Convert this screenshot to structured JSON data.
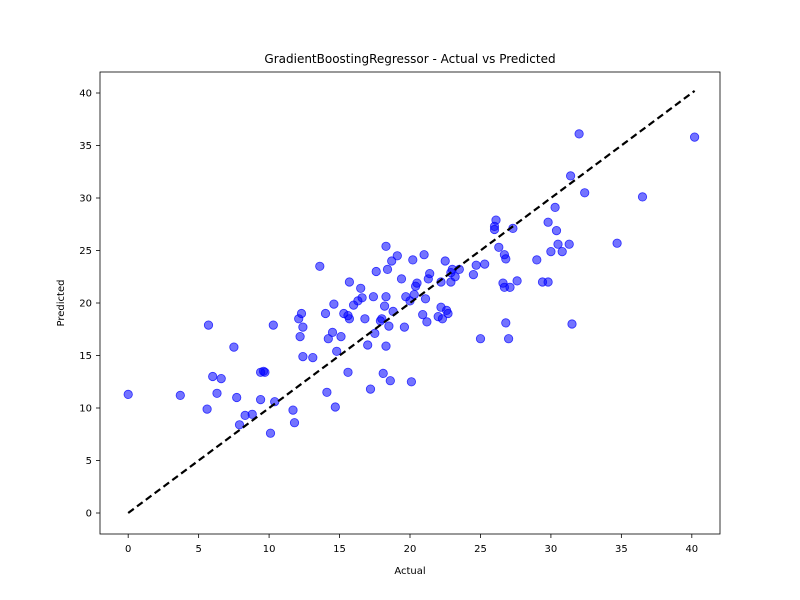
{
  "chart_data": {
    "type": "scatter",
    "title": "GradientBoostingRegressor - Actual vs Predicted",
    "xlabel": "Actual",
    "ylabel": "Predicted",
    "xlim": [
      -2,
      42
    ],
    "ylim": [
      -2,
      42
    ],
    "xticks": [
      0,
      5,
      10,
      15,
      20,
      25,
      30,
      35,
      40
    ],
    "yticks": [
      0,
      5,
      10,
      15,
      20,
      25,
      30,
      35,
      40
    ],
    "grid": false,
    "legend": "none",
    "point_color": "#0000ff",
    "point_opacity": 0.55,
    "reference_line": {
      "x": [
        0,
        40.2
      ],
      "y": [
        0,
        40.2
      ],
      "style": "dashed",
      "color": "#000000"
    },
    "points": [
      [
        0.0,
        11.3
      ],
      [
        3.7,
        11.2
      ],
      [
        5.6,
        9.9
      ],
      [
        5.7,
        17.9
      ],
      [
        6.0,
        13.0
      ],
      [
        6.3,
        11.4
      ],
      [
        6.6,
        12.8
      ],
      [
        7.5,
        15.8
      ],
      [
        7.7,
        11.0
      ],
      [
        7.9,
        8.4
      ],
      [
        8.3,
        9.3
      ],
      [
        8.8,
        9.4
      ],
      [
        9.4,
        13.4
      ],
      [
        9.6,
        13.5
      ],
      [
        9.7,
        13.4
      ],
      [
        9.4,
        10.8
      ],
      [
        10.1,
        7.6
      ],
      [
        10.3,
        17.9
      ],
      [
        10.4,
        10.6
      ],
      [
        11.7,
        9.8
      ],
      [
        11.8,
        8.6
      ],
      [
        12.1,
        18.5
      ],
      [
        12.3,
        19.0
      ],
      [
        12.2,
        16.8
      ],
      [
        12.4,
        17.7
      ],
      [
        12.4,
        14.9
      ],
      [
        13.1,
        14.8
      ],
      [
        13.6,
        23.5
      ],
      [
        14.0,
        19.0
      ],
      [
        14.1,
        11.5
      ],
      [
        14.2,
        16.6
      ],
      [
        14.5,
        17.2
      ],
      [
        14.6,
        19.9
      ],
      [
        14.7,
        10.1
      ],
      [
        14.8,
        15.4
      ],
      [
        15.1,
        16.8
      ],
      [
        15.3,
        19.0
      ],
      [
        15.6,
        13.4
      ],
      [
        15.6,
        18.8
      ],
      [
        15.7,
        18.5
      ],
      [
        15.7,
        22.0
      ],
      [
        16.0,
        19.8
      ],
      [
        16.3,
        20.2
      ],
      [
        16.5,
        21.4
      ],
      [
        16.6,
        20.5
      ],
      [
        16.8,
        18.5
      ],
      [
        17.0,
        16.0
      ],
      [
        17.2,
        11.8
      ],
      [
        17.4,
        20.6
      ],
      [
        17.5,
        17.1
      ],
      [
        17.6,
        23.0
      ],
      [
        17.9,
        18.3
      ],
      [
        18.1,
        13.3
      ],
      [
        18.0,
        18.5
      ],
      [
        18.2,
        19.7
      ],
      [
        18.3,
        20.6
      ],
      [
        18.3,
        25.4
      ],
      [
        18.3,
        15.9
      ],
      [
        18.4,
        23.2
      ],
      [
        18.5,
        17.8
      ],
      [
        18.6,
        12.6
      ],
      [
        18.7,
        24.0
      ],
      [
        18.8,
        19.2
      ],
      [
        19.1,
        24.5
      ],
      [
        19.4,
        22.3
      ],
      [
        19.6,
        17.7
      ],
      [
        19.7,
        20.6
      ],
      [
        20.0,
        20.2
      ],
      [
        20.1,
        12.5
      ],
      [
        20.2,
        24.1
      ],
      [
        20.3,
        20.8
      ],
      [
        20.4,
        21.6
      ],
      [
        20.5,
        21.9
      ],
      [
        20.9,
        18.9
      ],
      [
        21.0,
        24.6
      ],
      [
        21.1,
        20.4
      ],
      [
        21.2,
        18.2
      ],
      [
        21.4,
        22.8
      ],
      [
        21.3,
        22.3
      ],
      [
        22.0,
        18.7
      ],
      [
        22.2,
        19.6
      ],
      [
        22.2,
        22.0
      ],
      [
        22.3,
        18.5
      ],
      [
        22.5,
        24.0
      ],
      [
        22.6,
        19.3
      ],
      [
        22.7,
        19.0
      ],
      [
        22.9,
        22.9
      ],
      [
        22.9,
        22.0
      ],
      [
        23.0,
        23.2
      ],
      [
        23.2,
        22.5
      ],
      [
        23.5,
        23.2
      ],
      [
        24.5,
        22.7
      ],
      [
        24.7,
        23.6
      ],
      [
        25.0,
        16.6
      ],
      [
        25.3,
        23.7
      ],
      [
        26.0,
        27.3
      ],
      [
        26.1,
        27.9
      ],
      [
        26.0,
        27.0
      ],
      [
        26.3,
        25.3
      ],
      [
        26.7,
        24.6
      ],
      [
        26.6,
        21.9
      ],
      [
        26.7,
        21.5
      ],
      [
        26.8,
        24.2
      ],
      [
        26.8,
        18.1
      ],
      [
        27.0,
        16.6
      ],
      [
        27.1,
        21.5
      ],
      [
        27.3,
        27.1
      ],
      [
        27.6,
        22.1
      ],
      [
        29.0,
        24.1
      ],
      [
        29.4,
        22.0
      ],
      [
        29.8,
        27.7
      ],
      [
        29.8,
        22.0
      ],
      [
        30.0,
        24.9
      ],
      [
        30.3,
        29.1
      ],
      [
        30.4,
        26.9
      ],
      [
        30.5,
        25.6
      ],
      [
        30.8,
        24.9
      ],
      [
        31.3,
        25.6
      ],
      [
        31.4,
        32.1
      ],
      [
        31.5,
        18.0
      ],
      [
        32.0,
        36.1
      ],
      [
        32.4,
        30.5
      ],
      [
        34.7,
        25.7
      ],
      [
        36.5,
        30.1
      ],
      [
        40.2,
        35.8
      ]
    ]
  }
}
